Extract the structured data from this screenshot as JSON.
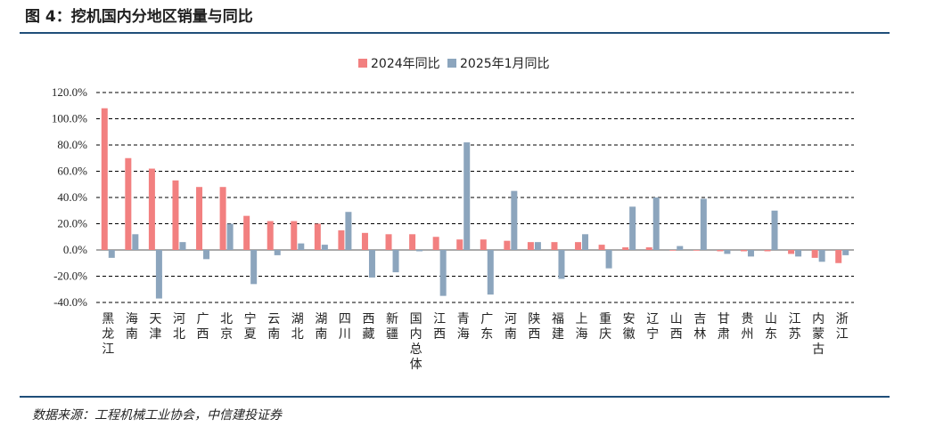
{
  "figure": {
    "title": "图 4：挖机国内分地区销量与同比",
    "source": "数据来源：工程机械工业协会，中信建投证券"
  },
  "colors": {
    "series1": "#f28080",
    "series2": "#8ca5bd",
    "rule": "#1f4e79"
  },
  "chart_data": {
    "type": "bar",
    "title": "",
    "xlabel": "",
    "ylabel": "",
    "ylim": [
      -40,
      120
    ],
    "yticks": [
      120,
      100,
      80,
      60,
      40,
      20,
      0,
      -20,
      -40
    ],
    "ytick_labels": [
      "120.0%",
      "100.0%",
      "80.0%",
      "60.0%",
      "40.0%",
      "20.0%",
      "0.0%",
      "-20.0%",
      "-40.0%"
    ],
    "grid": "horizontal dashed",
    "legend_position": "top-center",
    "categories": [
      "黑龙江",
      "海南",
      "天津",
      "河北",
      "广西",
      "北京",
      "宁夏",
      "云南",
      "湖北",
      "湖南",
      "四川",
      "西藏",
      "新疆",
      "国内总体",
      "江西",
      "青海",
      "广东",
      "河南",
      "陕西",
      "福建",
      "上海",
      "重庆",
      "安徽",
      "辽宁",
      "山西",
      "吉林",
      "甘肃",
      "贵州",
      "山东",
      "江苏",
      "内蒙古",
      "浙江"
    ],
    "series": [
      {
        "name": "2024年同比",
        "values": [
          108,
          70,
          62,
          53,
          48,
          48,
          26,
          22,
          22,
          20,
          15,
          13,
          12,
          12,
          10,
          8,
          8,
          7,
          6,
          6,
          6,
          4,
          2,
          2,
          0,
          0,
          -1,
          -1,
          -1,
          -3,
          -6,
          -10
        ]
      },
      {
        "name": "2025年1月同比",
        "values": [
          -6,
          12,
          -37,
          6,
          -7,
          20,
          -26,
          -4,
          5,
          4,
          29,
          -21,
          -17,
          -1,
          -35,
          82,
          -34,
          45,
          6,
          -22,
          12,
          -14,
          33,
          40,
          3,
          39,
          -3,
          -5,
          30,
          -5,
          -9,
          -4
        ]
      }
    ]
  }
}
